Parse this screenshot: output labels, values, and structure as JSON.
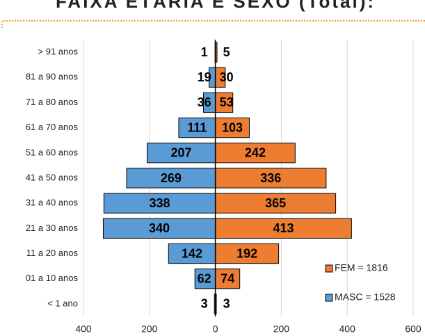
{
  "chart_data": {
    "type": "bar",
    "orientation": "horizontal",
    "title": "FAIXA ETÁRIA E SEXO (Total):",
    "categories": [
      "> 91 anos",
      "81 a 90 anos",
      "71 a 80 anos",
      "61 a 70 anos",
      "51 a 60 anos",
      "41 a 50 anos",
      "31 a 40 anos",
      "21 a 30 anos",
      "11 a 20 anos",
      "01 a 10 anos",
      "< 1 ano"
    ],
    "series": [
      {
        "name": "FEM = 1816",
        "color": "#ed7d31",
        "values": [
          5,
          30,
          53,
          103,
          242,
          336,
          365,
          413,
          192,
          74,
          3
        ]
      },
      {
        "name": "MASC = 1528",
        "color": "#5b9bd5",
        "values": [
          -1,
          -19,
          -36,
          -111,
          -207,
          -269,
          -338,
          -340,
          -142,
          -62,
          -3
        ],
        "value_labels": [
          "1",
          "19",
          "36",
          "111",
          "207",
          "269",
          "338",
          "340",
          "142",
          "62",
          "3"
        ]
      }
    ],
    "xlim": [
      -400,
      600
    ],
    "xticks": [
      {
        "value": -400,
        "label": "400"
      },
      {
        "value": -200,
        "label": "200"
      },
      0,
      200,
      400,
      600
    ],
    "grid": true,
    "legend": "lower right"
  }
}
